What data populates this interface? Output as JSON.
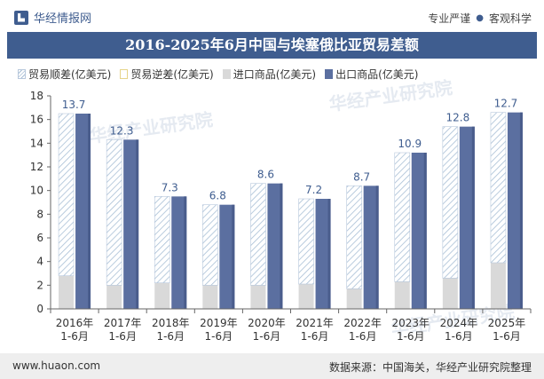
{
  "header": {
    "brand": "华经情报网",
    "tagline_left": "专业严谨",
    "tagline_right": "客观科学",
    "logo_icon": "huajing-logo-icon"
  },
  "watermark": "华经产业研究院",
  "footer": {
    "url": "www.huaon.com",
    "source": "数据来源：中国海关，华经产业研究院整理"
  },
  "colors": {
    "accent": "#3f5d8f",
    "export": "#5b6fa0",
    "import": "#d9d9d9",
    "surplus_hatch": "#a9bfd6",
    "deficit": "#e6d48a"
  },
  "chart_data": {
    "type": "bar",
    "title": "2016-2025年6月中国与埃塞俄比亚贸易差额",
    "categories": [
      "2016年\n1-6月",
      "2017年\n1-6月",
      "2018年\n1-6月",
      "2019年\n1-6月",
      "2020年\n1-6月",
      "2021年\n1-6月",
      "2022年\n1-6月",
      "2023年\n1-6月",
      "2024年\n1-6月",
      "2025年\n1-6月"
    ],
    "series": [
      {
        "name": "贸易顺差(亿美元)",
        "values": [
          13.7,
          12.3,
          7.3,
          6.8,
          8.6,
          7.2,
          8.7,
          10.9,
          12.8,
          12.7
        ]
      },
      {
        "name": "贸易逆差(亿美元)",
        "values": [
          0,
          0,
          0,
          0,
          0,
          0,
          0,
          0,
          0,
          0
        ]
      },
      {
        "name": "进口商品(亿美元)",
        "values": [
          2.8,
          2.0,
          2.2,
          2.0,
          2.0,
          2.1,
          1.7,
          2.3,
          2.6,
          3.9
        ]
      },
      {
        "name": "出口商品(亿美元)",
        "values": [
          16.5,
          14.3,
          9.5,
          8.8,
          10.6,
          9.3,
          10.4,
          13.2,
          15.4,
          16.6
        ]
      }
    ],
    "ylim": [
      0,
      18
    ],
    "yticks": [
      0,
      2,
      4,
      6,
      8,
      10,
      12,
      14,
      16,
      18
    ],
    "grid": false,
    "legend_position": "top-left",
    "xlabel": "",
    "ylabel": ""
  }
}
